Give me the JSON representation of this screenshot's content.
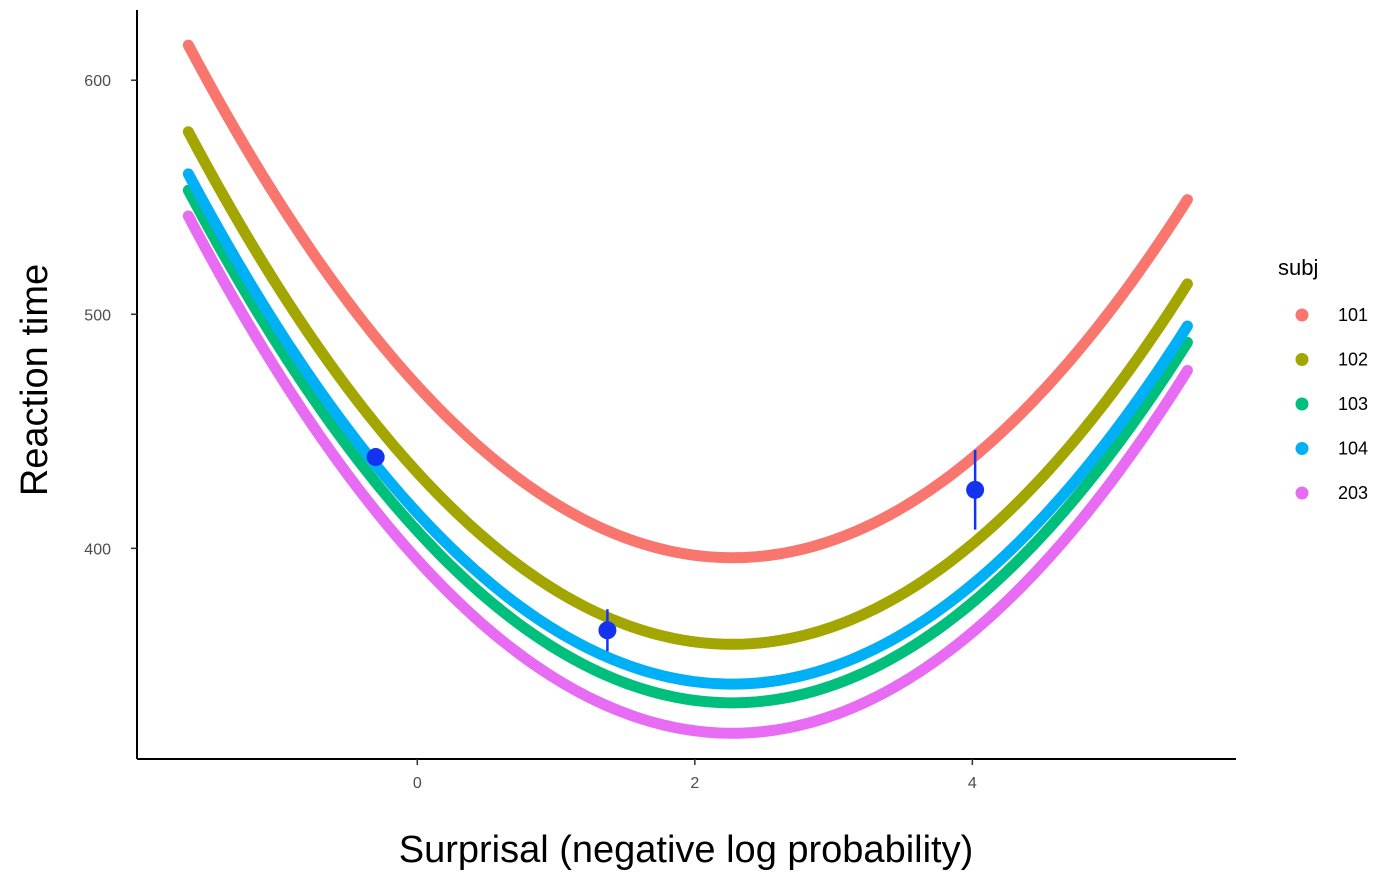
{
  "chart_data": {
    "type": "line",
    "xlabel": "Surprisal (negative log probability)",
    "ylabel": "Reaction time",
    "xlim": [
      -2.02,
      5.9
    ],
    "ylim": [
      310,
      630
    ],
    "x_ticks": [
      {
        "value": 0,
        "label": "0"
      },
      {
        "value": 2,
        "label": "2"
      },
      {
        "value": 4,
        "label": "4"
      }
    ],
    "y_ticks": [
      {
        "value": 400,
        "label": "400"
      },
      {
        "value": 500,
        "label": "500"
      },
      {
        "value": 600,
        "label": "600"
      }
    ],
    "grid": false,
    "legend": {
      "title": "subj",
      "position": "right"
    },
    "curve_x_range": [
      -1.65,
      5.55
    ],
    "curve_vertex_x": 2.27,
    "series": [
      {
        "name": "101",
        "color": "#F8766D",
        "vertex_y": 396,
        "left_y": 615,
        "right_y": 549
      },
      {
        "name": "102",
        "color": "#A3A500",
        "vertex_y": 359,
        "left_y": 578,
        "right_y": 513
      },
      {
        "name": "103",
        "color": "#00BF7D",
        "vertex_y": 334,
        "left_y": 553,
        "right_y": 488
      },
      {
        "name": "104",
        "color": "#00B0F6",
        "vertex_y": 342,
        "left_y": 560,
        "right_y": 495
      },
      {
        "name": "203",
        "color": "#E76BF3",
        "vertex_y": 321,
        "left_y": 542,
        "right_y": 476
      }
    ],
    "points": {
      "color": "#1433F0",
      "values": [
        {
          "x": -0.3,
          "y": 439,
          "ymin": 439,
          "ymax": 439
        },
        {
          "x": 1.37,
          "y": 365,
          "ymin": 356,
          "ymax": 374
        },
        {
          "x": 4.02,
          "y": 425,
          "ymin": 408,
          "ymax": 442
        }
      ]
    }
  }
}
